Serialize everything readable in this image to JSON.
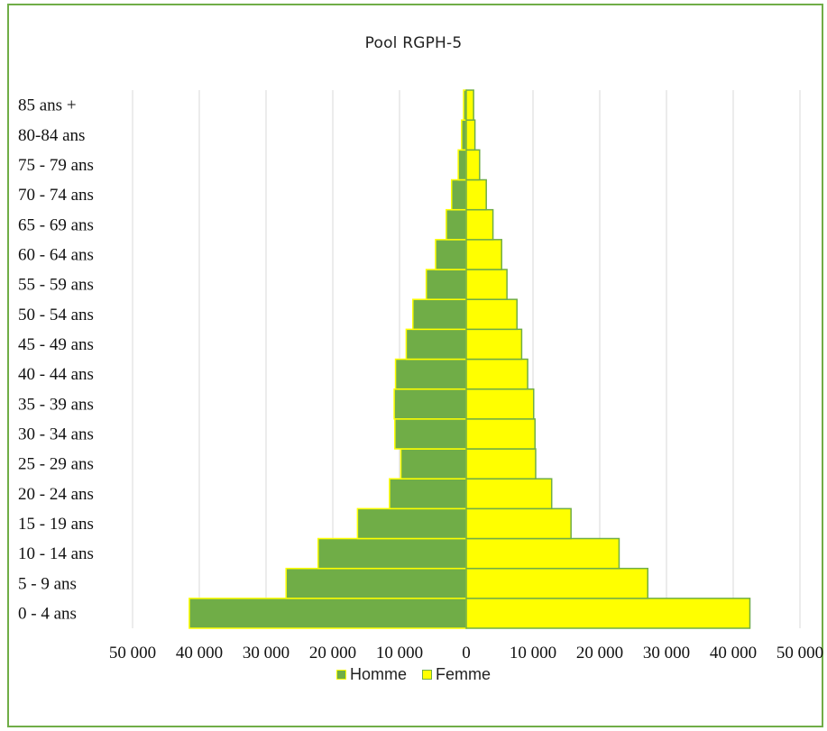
{
  "chart_data": {
    "type": "bar",
    "orientation": "horizontal-population-pyramid",
    "title": "Pool RGPH-5",
    "categories": [
      "0 - 4 ans",
      "5 - 9 ans",
      "10 - 14 ans",
      "15 - 19 ans",
      "20 - 24 ans",
      "25 - 29 ans",
      "30 - 34 ans",
      "35 - 39 ans",
      "40 - 44 ans",
      "45 - 49 ans",
      "50 - 54 ans",
      "55 - 59 ans",
      "60 - 64 ans",
      "65 - 69 ans",
      "70 - 74 ans",
      "75 - 79 ans",
      "80-84 ans",
      "85 ans +"
    ],
    "series": [
      {
        "name": "Homme",
        "color": "#70ad47",
        "border": "#ffff00",
        "values": [
          41500,
          27000,
          22200,
          16300,
          11500,
          9800,
          10700,
          10800,
          10600,
          9000,
          8000,
          6000,
          4600,
          3000,
          2200,
          1200,
          700,
          400
        ]
      },
      {
        "name": "Femme",
        "color": "#ffff00",
        "border": "#70ad47",
        "values": [
          42500,
          27200,
          22900,
          15700,
          12800,
          10400,
          10300,
          10100,
          9200,
          8300,
          7600,
          6100,
          5300,
          4000,
          3000,
          2000,
          1300,
          1100
        ]
      }
    ],
    "x_ticks": [
      "50 000",
      "40 000",
      "30 000",
      "20 000",
      "10 000",
      "0",
      "10 000",
      "20 000",
      "30 000",
      "40 000",
      "50 000"
    ],
    "xlim": [
      -50000,
      50000
    ],
    "grid": true,
    "legend_position": "bottom"
  }
}
